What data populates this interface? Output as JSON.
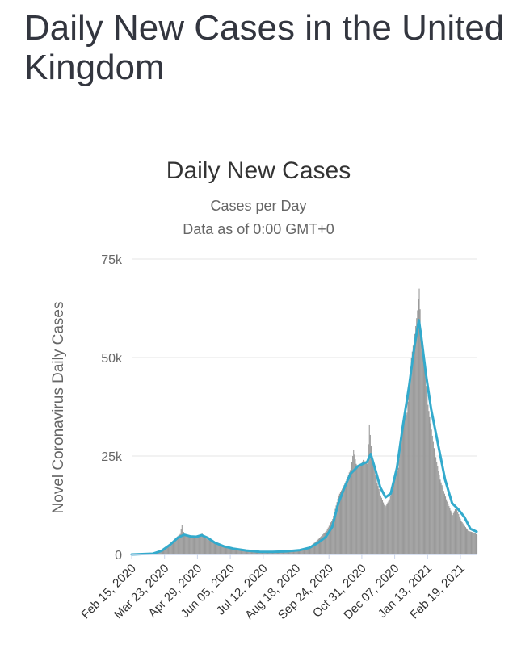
{
  "page": {
    "title": "Daily New Cases in the United Kingdom"
  },
  "chart_data": {
    "type": "bar",
    "title": "Daily New Cases",
    "subtitle": "Cases per Day",
    "subtitle2": "Data as of 0:00 GMT+0",
    "ylabel": "Novel Coronavirus Daily Cases",
    "ylim": [
      0,
      75000
    ],
    "y_ticks": [
      {
        "value": 0,
        "label": "0"
      },
      {
        "value": 25000,
        "label": "25k"
      },
      {
        "value": 50000,
        "label": "50k"
      },
      {
        "value": 75000,
        "label": "75k"
      }
    ],
    "x_tick_labels": [
      "Feb 15, 2020",
      "Mar 23, 2020",
      "Apr 29, 2020",
      "Jun 05, 2020",
      "Jul 12, 2020",
      "Aug 18, 2020",
      "Sep 24, 2020",
      "Oct 31, 2020",
      "Dec 07, 2020",
      "Jan 13, 2021",
      "Feb 19, 2021"
    ],
    "x_start": "2020-02-15",
    "x_end": "2021-03-15",
    "colors": {
      "bars": "#999999",
      "line": "#33aacc",
      "grid": "#e6e6e6",
      "baseline": "#ccd6eb"
    },
    "series": [
      {
        "type": "bar",
        "values": [
          [
            "2020-02-15",
            0
          ],
          [
            "2020-03-01",
            100
          ],
          [
            "2020-03-10",
            400
          ],
          [
            "2020-03-17",
            900
          ],
          [
            "2020-03-23",
            1700
          ],
          [
            "2020-03-30",
            2800
          ],
          [
            "2020-04-05",
            4200
          ],
          [
            "2020-04-10",
            5200
          ],
          [
            "2020-04-12",
            7500
          ],
          [
            "2020-04-15",
            4800
          ],
          [
            "2020-04-22",
            4700
          ],
          [
            "2020-04-29",
            4600
          ],
          [
            "2020-05-05",
            5300
          ],
          [
            "2020-05-10",
            4000
          ],
          [
            "2020-05-20",
            2800
          ],
          [
            "2020-05-30",
            2000
          ],
          [
            "2020-06-05",
            1600
          ],
          [
            "2020-06-15",
            1300
          ],
          [
            "2020-06-25",
            1000
          ],
          [
            "2020-07-05",
            700
          ],
          [
            "2020-07-12",
            600
          ],
          [
            "2020-07-25",
            700
          ],
          [
            "2020-08-05",
            800
          ],
          [
            "2020-08-18",
            1000
          ],
          [
            "2020-08-28",
            1200
          ],
          [
            "2020-09-05",
            2000
          ],
          [
            "2020-09-12",
            3300
          ],
          [
            "2020-09-24",
            6000
          ],
          [
            "2020-10-01",
            9000
          ],
          [
            "2020-10-08",
            15000
          ],
          [
            "2020-10-15",
            18000
          ],
          [
            "2020-10-22",
            22000
          ],
          [
            "2020-10-25",
            26500
          ],
          [
            "2020-10-28",
            23000
          ],
          [
            "2020-10-31",
            22000
          ],
          [
            "2020-11-05",
            24000
          ],
          [
            "2020-11-10",
            23000
          ],
          [
            "2020-11-12",
            33000
          ],
          [
            "2020-11-15",
            25000
          ],
          [
            "2020-11-20",
            19000
          ],
          [
            "2020-11-25",
            15000
          ],
          [
            "2020-11-30",
            12000
          ],
          [
            "2020-12-05",
            14000
          ],
          [
            "2020-12-10",
            18000
          ],
          [
            "2020-12-15",
            22000
          ],
          [
            "2020-12-20",
            33000
          ],
          [
            "2020-12-25",
            36000
          ],
          [
            "2020-12-30",
            50000
          ],
          [
            "2021-01-03",
            56000
          ],
          [
            "2021-01-06",
            62000
          ],
          [
            "2021-01-08",
            67500
          ],
          [
            "2021-01-10",
            57000
          ],
          [
            "2021-01-13",
            50000
          ],
          [
            "2021-01-18",
            38000
          ],
          [
            "2021-01-25",
            27000
          ],
          [
            "2021-02-01",
            19000
          ],
          [
            "2021-02-08",
            14000
          ],
          [
            "2021-02-15",
            10000
          ],
          [
            "2021-02-19",
            12000
          ],
          [
            "2021-02-25",
            8500
          ],
          [
            "2021-03-05",
            6000
          ],
          [
            "2021-03-12",
            5500
          ],
          [
            "2021-03-15",
            5000
          ]
        ]
      },
      {
        "type": "line",
        "values": [
          [
            "2020-02-15",
            0
          ],
          [
            "2020-03-10",
            200
          ],
          [
            "2020-03-20",
            900
          ],
          [
            "2020-03-30",
            2500
          ],
          [
            "2020-04-08",
            4300
          ],
          [
            "2020-04-15",
            5000
          ],
          [
            "2020-04-22",
            4600
          ],
          [
            "2020-04-29",
            4500
          ],
          [
            "2020-05-05",
            4900
          ],
          [
            "2020-05-12",
            4200
          ],
          [
            "2020-05-20",
            3000
          ],
          [
            "2020-05-30",
            2100
          ],
          [
            "2020-06-10",
            1500
          ],
          [
            "2020-06-25",
            1000
          ],
          [
            "2020-07-10",
            700
          ],
          [
            "2020-07-25",
            650
          ],
          [
            "2020-08-10",
            800
          ],
          [
            "2020-08-25",
            1100
          ],
          [
            "2020-09-05",
            1700
          ],
          [
            "2020-09-15",
            3000
          ],
          [
            "2020-09-24",
            4500
          ],
          [
            "2020-10-01",
            7000
          ],
          [
            "2020-10-08",
            13000
          ],
          [
            "2020-10-15",
            17000
          ],
          [
            "2020-10-22",
            20500
          ],
          [
            "2020-10-31",
            22500
          ],
          [
            "2020-11-05",
            23000
          ],
          [
            "2020-11-10",
            23500
          ],
          [
            "2020-11-14",
            25500
          ],
          [
            "2020-11-20",
            21000
          ],
          [
            "2020-11-25",
            17000
          ],
          [
            "2020-12-01",
            14500
          ],
          [
            "2020-12-07",
            15500
          ],
          [
            "2020-12-14",
            22000
          ],
          [
            "2020-12-21",
            33000
          ],
          [
            "2020-12-28",
            43000
          ],
          [
            "2021-01-03",
            53000
          ],
          [
            "2021-01-08",
            59500
          ],
          [
            "2021-01-11",
            55000
          ],
          [
            "2021-01-16",
            46000
          ],
          [
            "2021-01-22",
            37000
          ],
          [
            "2021-01-30",
            28000
          ],
          [
            "2021-02-07",
            19000
          ],
          [
            "2021-02-15",
            13000
          ],
          [
            "2021-02-22",
            11500
          ],
          [
            "2021-03-01",
            9500
          ],
          [
            "2021-03-08",
            6500
          ],
          [
            "2021-03-15",
            5800
          ]
        ]
      }
    ]
  }
}
